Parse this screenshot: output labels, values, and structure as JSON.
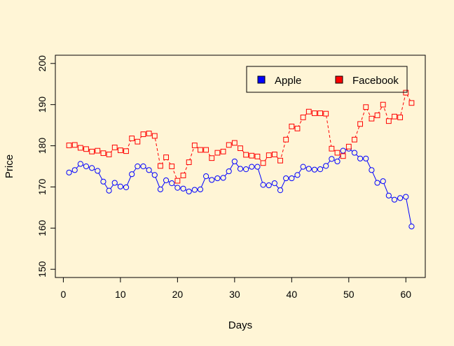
{
  "chart_data": {
    "type": "line",
    "xlabel": "Days",
    "ylabel": "Price",
    "xlim": [
      -1.4,
      63.4
    ],
    "ylim": [
      148,
      202
    ],
    "xticks": [
      0,
      10,
      20,
      30,
      40,
      50,
      60
    ],
    "yticks": [
      150,
      160,
      170,
      180,
      190,
      200
    ],
    "grid": false,
    "legend_position": "top-right",
    "x": [
      1,
      2,
      3,
      4,
      5,
      6,
      7,
      8,
      9,
      10,
      11,
      12,
      13,
      14,
      15,
      16,
      17,
      18,
      19,
      20,
      21,
      22,
      23,
      24,
      25,
      26,
      27,
      28,
      29,
      30,
      31,
      32,
      33,
      34,
      35,
      36,
      37,
      38,
      39,
      40,
      41,
      42,
      43,
      44,
      45,
      46,
      47,
      48,
      49,
      50,
      51,
      52,
      53,
      54,
      55,
      56,
      57,
      58,
      59,
      60,
      61
    ],
    "series": [
      {
        "name": "Apple",
        "color": "#0000ff",
        "marker": "circle",
        "line_style": "solid",
        "values": [
          173.5,
          174.1,
          175.6,
          175.0,
          174.6,
          173.9,
          171.3,
          169.1,
          171.0,
          170.1,
          169.9,
          173.1,
          175.0,
          175.0,
          174.1,
          172.9,
          169.4,
          171.6,
          170.9,
          169.8,
          169.6,
          168.9,
          169.3,
          169.4,
          172.6,
          171.7,
          172.1,
          172.2,
          173.8,
          176.2,
          174.4,
          174.3,
          174.9,
          174.9,
          170.5,
          170.4,
          170.9,
          169.2,
          172.1,
          172.1,
          172.9,
          174.9,
          174.4,
          174.2,
          174.3,
          175.1,
          176.8,
          176.2,
          178.8,
          179.3,
          178.3,
          176.9,
          176.9,
          174.1,
          171.0,
          171.4,
          167.9,
          166.9,
          167.3,
          167.6,
          160.4
        ]
      },
      {
        "name": "Facebook",
        "color": "#ff0000",
        "marker": "square",
        "line_style": "dashed",
        "values": [
          180.1,
          180.2,
          179.5,
          179.2,
          178.6,
          178.8,
          178.2,
          177.9,
          179.6,
          178.9,
          178.7,
          181.8,
          181.0,
          182.8,
          183.0,
          182.4,
          175.1,
          177.2,
          175.0,
          171.5,
          172.8,
          176.0,
          180.1,
          179.0,
          179.0,
          177.0,
          178.3,
          178.6,
          180.2,
          180.7,
          179.4,
          177.8,
          177.6,
          177.4,
          175.8,
          177.7,
          177.9,
          176.4,
          181.5,
          184.7,
          184.2,
          186.9,
          188.3,
          187.9,
          187.9,
          187.8,
          179.3,
          178.3,
          177.5,
          179.8,
          181.5,
          185.3,
          189.4,
          186.6,
          187.4,
          190.0,
          186.0,
          187.1,
          186.9,
          192.9,
          190.4
        ]
      }
    ]
  }
}
